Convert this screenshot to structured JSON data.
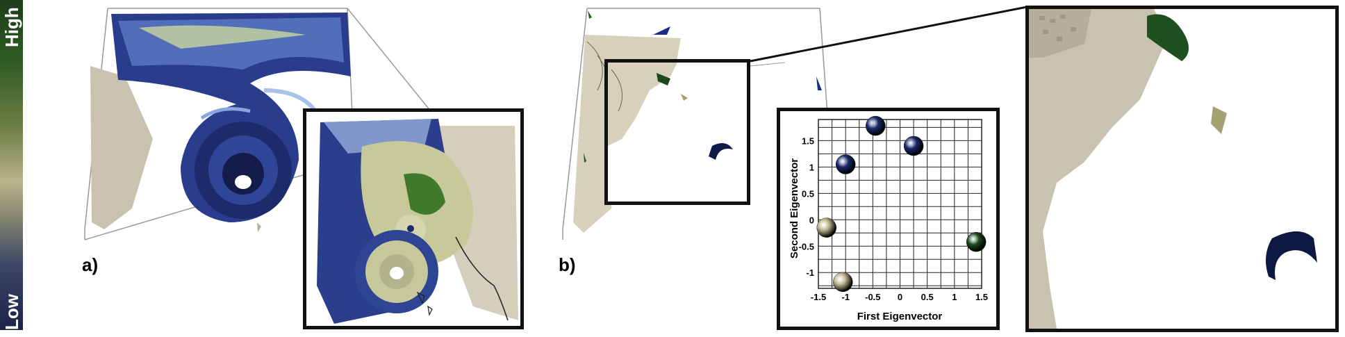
{
  "colorbar": {
    "high_label": "High",
    "low_label": "Low"
  },
  "panels": {
    "a_label": "a)",
    "b_label": "b)"
  },
  "chart_data": {
    "type": "scatter",
    "xlabel": "First Eigenvector",
    "ylabel": "Second Eigenvector",
    "xlim": [
      -1.5,
      1.5
    ],
    "ylim": [
      -1.3,
      1.9
    ],
    "x_ticks": [
      "-1.5",
      "-1",
      "-0.5",
      "0",
      "0.5",
      "1",
      "1.5"
    ],
    "y_ticks": [
      "-1",
      "-0.5",
      "0",
      "0.5",
      "1",
      "1.5"
    ],
    "grid": true,
    "points": [
      {
        "x": -0.45,
        "y": 1.78,
        "color": "#1a2a6b"
      },
      {
        "x": 0.25,
        "y": 1.4,
        "color": "#1a2a6b"
      },
      {
        "x": -1.0,
        "y": 1.05,
        "color": "#1a2a6b"
      },
      {
        "x": -1.35,
        "y": -0.15,
        "color": "#b8b28a"
      },
      {
        "x": 1.4,
        "y": -0.42,
        "color": "#1f4a1c"
      },
      {
        "x": -1.05,
        "y": -1.18,
        "color": "#b8b28a"
      }
    ]
  }
}
